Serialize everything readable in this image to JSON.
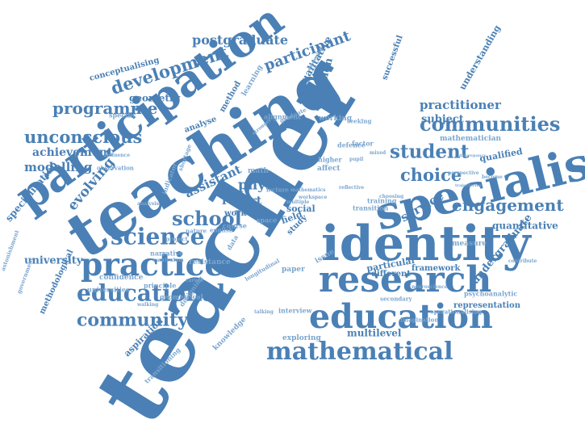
{
  "colors": {
    "primary": "#4a80b5",
    "light": "#7ba6cf",
    "background": "#ffffff"
  },
  "words": [
    "teacher",
    "teaching",
    "participation",
    "identity",
    "specialist",
    "research",
    "education",
    "mathematical",
    "practice",
    "educational",
    "science",
    "community",
    "school",
    "programme",
    "unconscious",
    "communities",
    "student",
    "engagement",
    "development",
    "postgraduate",
    "participant",
    "achievement",
    "modelling",
    "specialisation",
    "evolving",
    "assistant",
    "report",
    "physic",
    "choice",
    "practitioner",
    "subject",
    "service",
    "university",
    "methodological",
    "aspiration",
    "transitioning",
    "knowledge",
    "multilevel",
    "interview",
    "representation",
    "framework",
    "undergraduate",
    "quantitative",
    "qualified",
    "different",
    "paper",
    "field",
    "study",
    "social",
    "geometry",
    "conceptualising",
    "understanding",
    "mathematician",
    "successful",
    "attention",
    "qualitative",
    "method",
    "learning",
    "analyse",
    "working",
    "defence",
    "affect",
    "higher",
    "resistance",
    "confidence",
    "universities",
    "principle",
    "geometrical",
    "designing",
    "exploring",
    "project",
    "narrative",
    "english",
    "nature",
    "course",
    "work",
    "data",
    "space",
    "lecture",
    "math",
    "indicator",
    "shortage",
    "particular",
    "issue",
    "measure",
    "training",
    "psychoanalytic",
    "secondary",
    "neuroscience",
    "factor",
    "pupil",
    "mixed",
    "transition",
    "choosing",
    "perspective",
    "become",
    "trajectories",
    "discrepancy",
    "contribute",
    "longitudinal",
    "imagination",
    "operationalising",
    "astonishment",
    "government",
    "walking",
    "talking",
    "workspace",
    "observation",
    "influence",
    "specific",
    "alignment",
    "graduate",
    "seeking",
    "emerging",
    "mathematics",
    "multiple",
    "curriculum",
    "career",
    "reflective",
    "analysis",
    "stronger"
  ]
}
